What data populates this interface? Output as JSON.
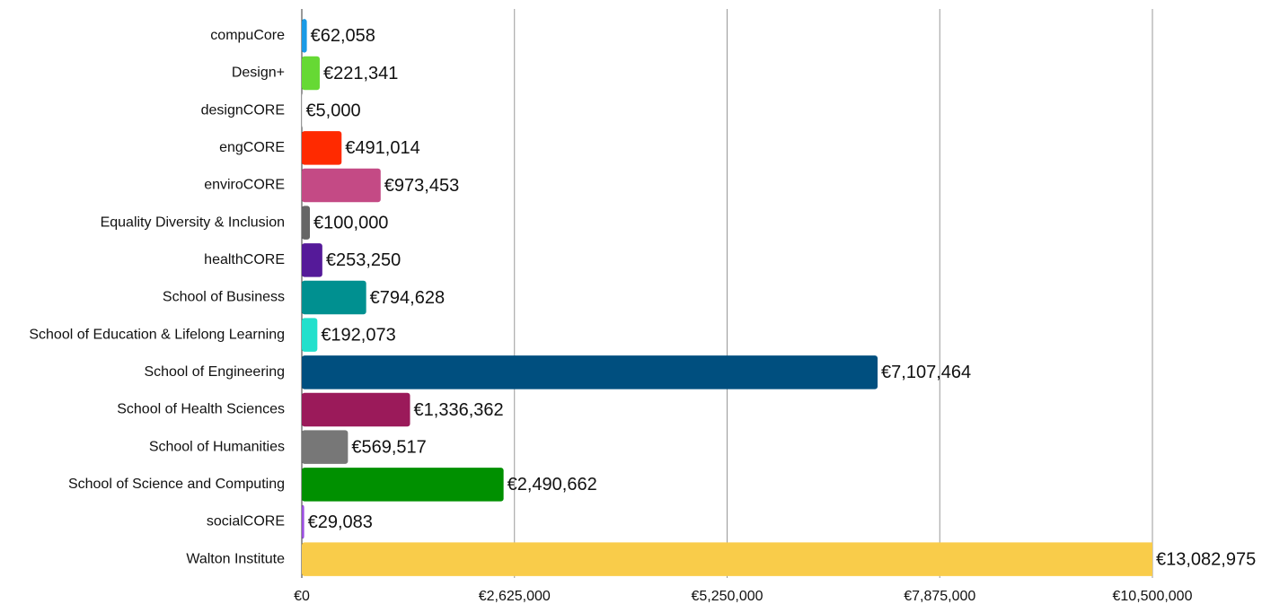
{
  "chart_data": {
    "type": "hbar",
    "categories": [
      "compuCore",
      "Design+",
      "designCORE",
      "engCORE",
      "enviroCORE",
      "Equality Diversity & Inclusion",
      "healthCORE",
      "School of Business",
      "School of Education & Lifelong Learning",
      "School of Engineering",
      "School of Health Sciences",
      "School of Humanities",
      "School of Science and Computing",
      "socialCORE",
      "Walton Institute"
    ],
    "values": [
      62058,
      221341,
      5000,
      491014,
      973453,
      100000,
      253250,
      794628,
      192073,
      7107464,
      1336362,
      569517,
      2490662,
      29083,
      13082975
    ],
    "value_labels": [
      "€62,058",
      "€221,341",
      "€5,000",
      "€491,014",
      "€973,453",
      "€100,000",
      "€253,250",
      "€794,628",
      "€192,073",
      "€7,107,464",
      "€1,336,362",
      "€569,517",
      "€2,490,662",
      "€29,083",
      "€13,082,975"
    ],
    "colors": [
      "#1a9be6",
      "#66d934",
      "#e6e6e6",
      "#ff2a00",
      "#c44a85",
      "#666666",
      "#551a99",
      "#009090",
      "#22e0cc",
      "#004f7f",
      "#9b1a5a",
      "#777777",
      "#009000",
      "#9b4fe0",
      "#f9cc4a"
    ],
    "xlim": [
      0,
      10500000
    ],
    "xticks": [
      {
        "value": 0,
        "label": "€0"
      },
      {
        "value": 2625000,
        "label": "€2,625,000"
      },
      {
        "value": 5250000,
        "label": "€5,250,000"
      },
      {
        "value": 7875000,
        "label": "€7,875,000"
      },
      {
        "value": 10500000,
        "label": "€10,500,000"
      }
    ],
    "grid": true
  }
}
